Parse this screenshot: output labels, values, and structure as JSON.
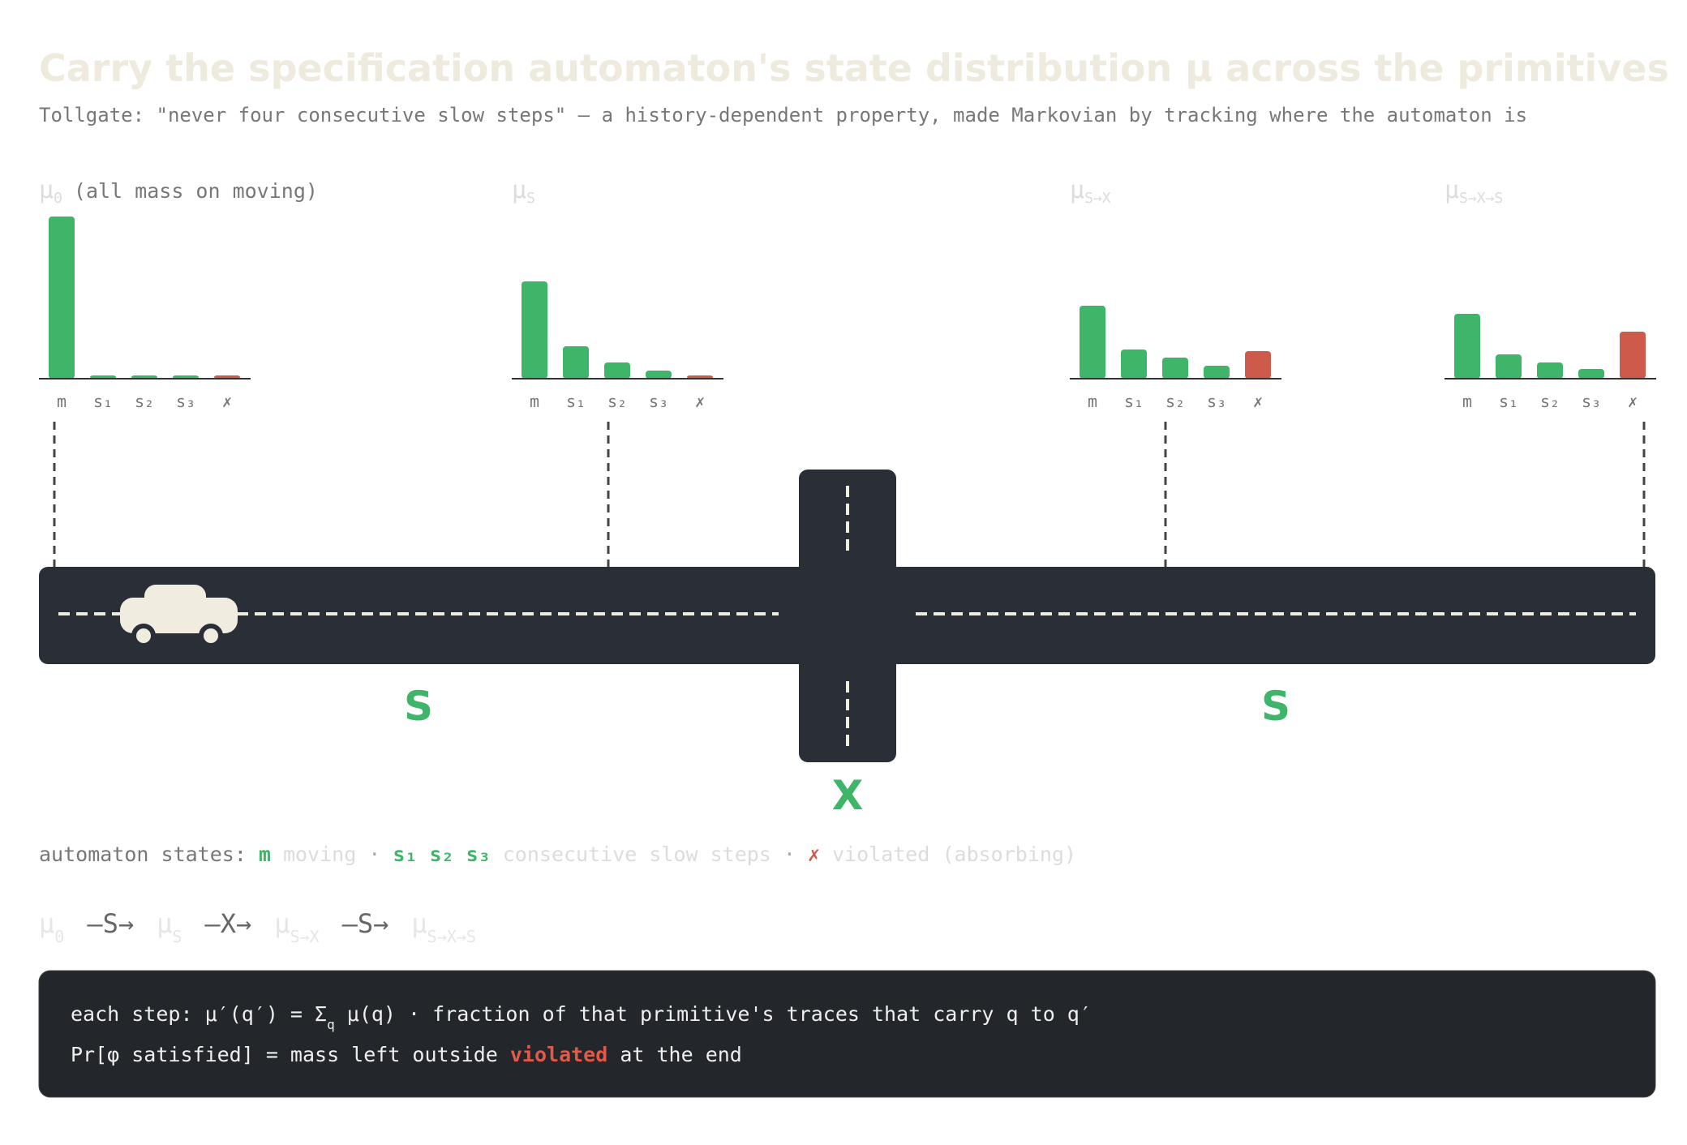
{
  "header": {
    "title": "Carry the specification automaton's state distribution μ across the primitives",
    "subtitle": "Tollgate: \"never four consecutive slow steps\" — a history-dependent property, made Markovian by tracking where the automaton is"
  },
  "chart_data": [
    {
      "type": "bar",
      "title": {
        "symbol": "μ",
        "sub": "0",
        "note": "(all mass on moving)"
      },
      "categories": [
        "m",
        "s₁",
        "s₂",
        "s₃",
        "✗"
      ],
      "values": [
        1.0,
        0.02,
        0.02,
        0.02,
        0.02
      ],
      "colors": [
        "#3fb56a",
        "#3fb56a",
        "#3fb56a",
        "#3fb56a",
        "#cd5a4a"
      ]
    },
    {
      "type": "bar",
      "title": {
        "symbol": "μ",
        "sub": "S"
      },
      "categories": [
        "m",
        "s₁",
        "s₂",
        "s₃",
        "✗"
      ],
      "values": [
        0.6,
        0.2,
        0.1,
        0.05,
        0.02
      ],
      "colors": [
        "#3fb56a",
        "#3fb56a",
        "#3fb56a",
        "#3fb56a",
        "#cd5a4a"
      ]
    },
    {
      "type": "bar",
      "title": {
        "symbol": "μ",
        "sub": "S→X"
      },
      "categories": [
        "m",
        "s₁",
        "s₂",
        "s₃",
        "✗"
      ],
      "values": [
        0.45,
        0.18,
        0.13,
        0.08,
        0.17
      ],
      "colors": [
        "#3fb56a",
        "#3fb56a",
        "#3fb56a",
        "#3fb56a",
        "#cd5a4a"
      ]
    },
    {
      "type": "bar",
      "title": {
        "symbol": "μ",
        "sub": "S→X→S"
      },
      "categories": [
        "m",
        "s₁",
        "s₂",
        "s₃",
        "✗"
      ],
      "values": [
        0.4,
        0.15,
        0.1,
        0.06,
        0.29
      ],
      "colors": [
        "#3fb56a",
        "#3fb56a",
        "#3fb56a",
        "#3fb56a",
        "#cd5a4a"
      ]
    }
  ],
  "road": {
    "primitives": [
      "S",
      "X",
      "S"
    ]
  },
  "legend": {
    "lead": "automaton states:",
    "m": "m",
    "moving": "moving",
    "dot": "·",
    "slow": "s₁ s₂ s₃",
    "slow_text": "consecutive slow steps",
    "dot2": "·",
    "violated_mark": "✗",
    "violated_text": "violated (absorbing)"
  },
  "sequence": [
    {
      "symbol": "μ",
      "sub": "0"
    },
    "—S→",
    {
      "symbol": "μ",
      "sub": "S"
    },
    "—X→",
    {
      "symbol": "μ",
      "sub": "S→X"
    },
    "—S→",
    {
      "symbol": "μ",
      "sub": "S→X→S"
    }
  ],
  "formula": {
    "line1": [
      "each step: μ′(q′) = Σ",
      "q",
      " μ(q) · fraction of that primitive's traces that carry q to q′"
    ],
    "line2": [
      "Pr[φ satisfied] = mass left outside ",
      "violated",
      " at the end"
    ]
  }
}
